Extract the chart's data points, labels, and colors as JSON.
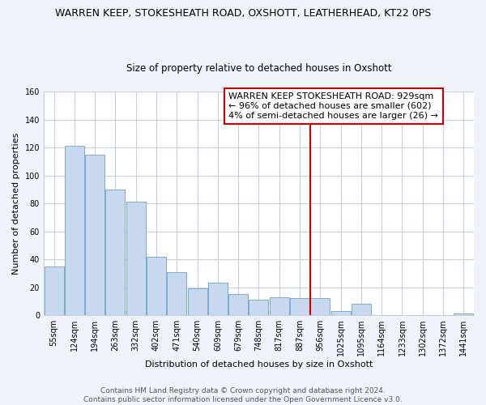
{
  "title": "WARREN KEEP, STOKESHEATH ROAD, OXSHOTT, LEATHERHEAD, KT22 0PS",
  "subtitle": "Size of property relative to detached houses in Oxshott",
  "xlabel": "Distribution of detached houses by size in Oxshott",
  "ylabel": "Number of detached properties",
  "bar_labels": [
    "55sqm",
    "124sqm",
    "194sqm",
    "263sqm",
    "332sqm",
    "402sqm",
    "471sqm",
    "540sqm",
    "609sqm",
    "679sqm",
    "748sqm",
    "817sqm",
    "887sqm",
    "956sqm",
    "1025sqm",
    "1095sqm",
    "1164sqm",
    "1233sqm",
    "1302sqm",
    "1372sqm",
    "1441sqm"
  ],
  "bar_values": [
    35,
    121,
    115,
    90,
    81,
    42,
    31,
    19,
    23,
    15,
    11,
    13,
    12,
    12,
    3,
    8,
    0,
    0,
    0,
    0,
    1
  ],
  "bar_color": "#c8d8ee",
  "bar_edge_color": "#7aaad0",
  "vline_x_index": 13,
  "vline_color": "#cc0000",
  "ylim": [
    0,
    160
  ],
  "yticks": [
    0,
    20,
    40,
    60,
    80,
    100,
    120,
    140,
    160
  ],
  "annotation_title": "WARREN KEEP STOKESHEATH ROAD: 929sqm",
  "annotation_line1": "← 96% of detached houses are smaller (602)",
  "annotation_line2": "4% of semi-detached houses are larger (26) →",
  "footer1": "Contains HM Land Registry data © Crown copyright and database right 2024.",
  "footer2": "Contains public sector information licensed under the Open Government Licence v3.0.",
  "plot_bg_color": "#ffffff",
  "fig_bg_color": "#f0f4fa",
  "grid_color": "#c8d0dc",
  "title_fontsize": 9,
  "subtitle_fontsize": 8.5,
  "axis_label_fontsize": 8,
  "tick_fontsize": 7,
  "annotation_fontsize": 8,
  "footer_fontsize": 6.5
}
